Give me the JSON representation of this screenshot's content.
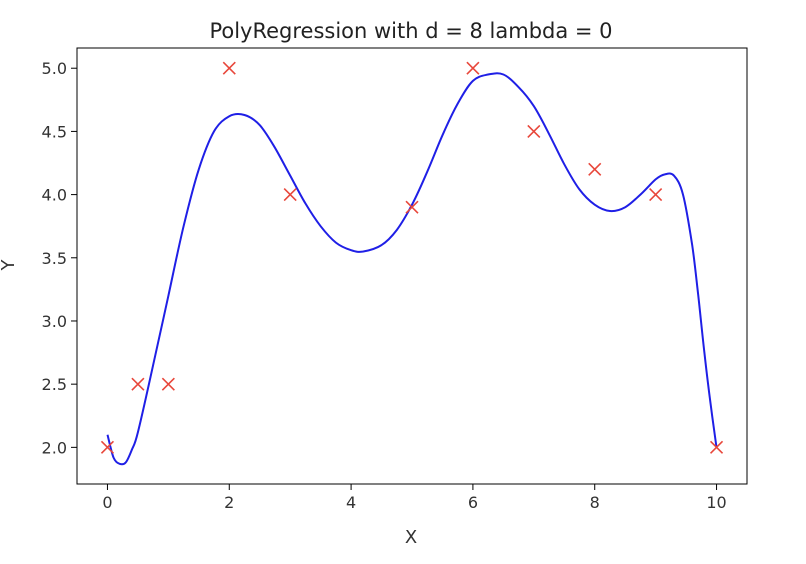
{
  "chart_data": {
    "type": "scatter",
    "title": "PolyRegression with d = 8 lambda = 0",
    "xlabel": "X",
    "ylabel": "Y",
    "xlim": [
      -0.5,
      10.5
    ],
    "ylim": [
      1.71,
      5.16
    ],
    "xticks": [
      0,
      2,
      4,
      6,
      8,
      10
    ],
    "yticks": [
      2.0,
      2.5,
      3.0,
      3.5,
      4.0,
      4.5,
      5.0
    ],
    "xtick_labels": [
      "0",
      "2",
      "4",
      "6",
      "8",
      "10"
    ],
    "ytick_labels": [
      "2.0",
      "2.5",
      "3.0",
      "3.5",
      "4.0",
      "4.5",
      "5.0"
    ],
    "grid": false,
    "scatter": {
      "marker": "x",
      "color": "#e8473b",
      "x": [
        0,
        0.5,
        1,
        2,
        3,
        5,
        6,
        7,
        8,
        9,
        10
      ],
      "y": [
        2.0,
        2.5,
        2.5,
        5.0,
        4.0,
        3.9,
        5.0,
        4.5,
        4.2,
        4.0,
        2.0
      ]
    },
    "fit_line": {
      "color": "#1f1fe6",
      "x": [
        0,
        0.1,
        0.2,
        0.3,
        0.4,
        0.5,
        0.75,
        1,
        1.25,
        1.5,
        1.75,
        2,
        2.25,
        2.5,
        2.75,
        3,
        3.25,
        3.5,
        3.75,
        4,
        4.2,
        4.5,
        4.75,
        5,
        5.25,
        5.5,
        5.75,
        6,
        6.25,
        6.5,
        6.75,
        7,
        7.25,
        7.5,
        7.75,
        8,
        8.25,
        8.5,
        8.75,
        9,
        9.15,
        9.3,
        9.45,
        9.6,
        9.7,
        9.8,
        9.9,
        10
      ],
      "y": [
        2.1,
        1.92,
        1.87,
        1.88,
        1.98,
        2.12,
        2.65,
        3.2,
        3.75,
        4.2,
        4.5,
        4.62,
        4.63,
        4.55,
        4.37,
        4.15,
        3.93,
        3.75,
        3.62,
        3.56,
        3.55,
        3.6,
        3.72,
        3.92,
        4.18,
        4.47,
        4.72,
        4.9,
        4.95,
        4.95,
        4.85,
        4.7,
        4.48,
        4.24,
        4.04,
        3.92,
        3.87,
        3.9,
        4.0,
        4.12,
        4.16,
        4.15,
        4.0,
        3.6,
        3.2,
        2.75,
        2.35,
        2.0
      ]
    }
  }
}
